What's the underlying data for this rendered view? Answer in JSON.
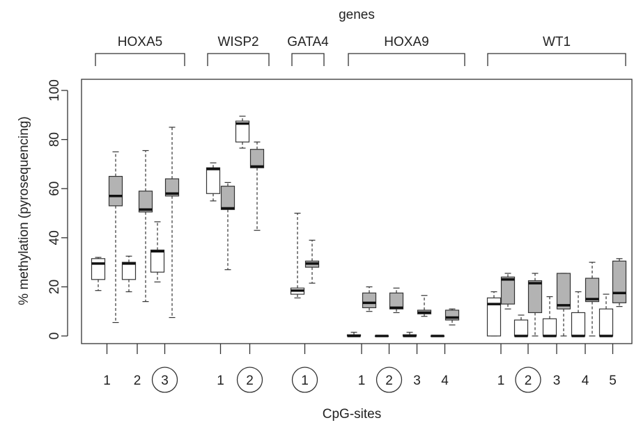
{
  "chart_data": {
    "type": "boxplot",
    "title": "genes",
    "xlabel": "CpG-sites",
    "ylabel": "% methylation (pyrosequencing)",
    "ylim": [
      0,
      100
    ],
    "yticks": [
      0,
      20,
      40,
      60,
      80,
      100
    ],
    "grid": false,
    "series_colors": {
      "white": "#ffffff",
      "gray": "#b3b3b3"
    },
    "groups": [
      {
        "gene": "HOXA5",
        "sites": [
          {
            "label": "1",
            "circled": false
          },
          {
            "label": "2",
            "circled": false
          },
          {
            "label": "3",
            "circled": true
          }
        ]
      },
      {
        "gene": "WISP2",
        "sites": [
          {
            "label": "1",
            "circled": false
          },
          {
            "label": "2",
            "circled": true
          }
        ]
      },
      {
        "gene": "GATA4",
        "sites": [
          {
            "label": "1",
            "circled": true
          }
        ]
      },
      {
        "gene": "HOXA9",
        "sites": [
          {
            "label": "1",
            "circled": false
          },
          {
            "label": "2",
            "circled": true
          },
          {
            "label": "3",
            "circled": false
          },
          {
            "label": "4",
            "circled": false
          }
        ]
      },
      {
        "gene": "WT1",
        "sites": [
          {
            "label": "1",
            "circled": false
          },
          {
            "label": "2",
            "circled": true
          },
          {
            "label": "3",
            "circled": false
          },
          {
            "label": "4",
            "circled": false
          },
          {
            "label": "5",
            "circled": false
          }
        ]
      }
    ],
    "boxes": [
      {
        "gene": "HOXA5",
        "site": "1",
        "fill": "white",
        "min": 18.5,
        "q1": 23,
        "median": 29.5,
        "q3": 31.5,
        "max": 32
      },
      {
        "gene": "HOXA5",
        "site": "1",
        "fill": "gray",
        "min": 5.5,
        "q1": 53,
        "median": 57,
        "q3": 65,
        "max": 75
      },
      {
        "gene": "HOXA5",
        "site": "2",
        "fill": "white",
        "min": 18,
        "q1": 23,
        "median": 29.5,
        "q3": 30,
        "max": 32.5
      },
      {
        "gene": "HOXA5",
        "site": "2",
        "fill": "gray",
        "min": 14,
        "q1": 50.5,
        "median": 51.5,
        "q3": 59,
        "max": 75.5
      },
      {
        "gene": "HOXA5",
        "site": "3",
        "fill": "white",
        "min": 22,
        "q1": 26,
        "median": 34.5,
        "q3": 35,
        "max": 46.5
      },
      {
        "gene": "HOXA5",
        "site": "3",
        "fill": "gray",
        "min": 7.5,
        "q1": 57,
        "median": 58,
        "q3": 64,
        "max": 85
      },
      {
        "gene": "WISP2",
        "site": "1",
        "fill": "white",
        "min": 55,
        "q1": 58,
        "median": 68,
        "q3": 68.5,
        "max": 70.5
      },
      {
        "gene": "WISP2",
        "site": "1",
        "fill": "gray",
        "min": 27,
        "q1": 51.5,
        "median": 52,
        "q3": 61,
        "max": 62.5
      },
      {
        "gene": "WISP2",
        "site": "2",
        "fill": "white",
        "min": 76.5,
        "q1": 79,
        "median": 86.5,
        "q3": 87.5,
        "max": 89.5
      },
      {
        "gene": "WISP2",
        "site": "2",
        "fill": "gray",
        "min": 43,
        "q1": 68.5,
        "median": 69,
        "q3": 76,
        "max": 79
      },
      {
        "gene": "GATA4",
        "site": "1",
        "fill": "white",
        "min": 15.5,
        "q1": 17,
        "median": 18.5,
        "q3": 19.5,
        "max": 50
      },
      {
        "gene": "GATA4",
        "site": "1",
        "fill": "gray",
        "min": 21.5,
        "q1": 28,
        "median": 29.5,
        "q3": 30.5,
        "max": 39
      },
      {
        "gene": "HOXA9",
        "site": "1",
        "fill": "white",
        "min": 0,
        "q1": 0,
        "median": 0,
        "q3": 0.5,
        "max": 1.5
      },
      {
        "gene": "HOXA9",
        "site": "1",
        "fill": "gray",
        "min": 10,
        "q1": 11.5,
        "median": 13.5,
        "q3": 17.5,
        "max": 20
      },
      {
        "gene": "HOXA9",
        "site": "2",
        "fill": "white",
        "min": 0,
        "q1": 0,
        "median": 0,
        "q3": 0,
        "max": 0
      },
      {
        "gene": "HOXA9",
        "site": "2",
        "fill": "gray",
        "min": 9.5,
        "q1": 11,
        "median": 11.5,
        "q3": 17.5,
        "max": 19.5
      },
      {
        "gene": "HOXA9",
        "site": "3",
        "fill": "white",
        "min": 0,
        "q1": 0,
        "median": 0,
        "q3": 0.5,
        "max": 1.5
      },
      {
        "gene": "HOXA9",
        "site": "3",
        "fill": "gray",
        "min": 8,
        "q1": 9,
        "median": 9.5,
        "q3": 10.5,
        "max": 16.5
      },
      {
        "gene": "HOXA9",
        "site": "4",
        "fill": "white",
        "min": 0,
        "q1": 0,
        "median": 0,
        "q3": 0,
        "max": 0
      },
      {
        "gene": "HOXA9",
        "site": "4",
        "fill": "gray",
        "min": 4.5,
        "q1": 6.5,
        "median": 7.5,
        "q3": 10.5,
        "max": 11
      },
      {
        "gene": "WT1",
        "site": "1",
        "fill": "white",
        "min": 0,
        "q1": 0,
        "median": 13,
        "q3": 15.5,
        "max": 18
      },
      {
        "gene": "WT1",
        "site": "1",
        "fill": "gray",
        "min": 11,
        "q1": 13,
        "median": 23,
        "q3": 24,
        "max": 25.5
      },
      {
        "gene": "WT1",
        "site": "2",
        "fill": "white",
        "min": 0,
        "q1": 0,
        "median": 0,
        "q3": 6.5,
        "max": 8.5
      },
      {
        "gene": "WT1",
        "site": "2",
        "fill": "gray",
        "min": 0,
        "q1": 9.5,
        "median": 21.5,
        "q3": 22.5,
        "max": 25.5
      },
      {
        "gene": "WT1",
        "site": "3",
        "fill": "white",
        "min": 0,
        "q1": 0,
        "median": 0,
        "q3": 7,
        "max": 16
      },
      {
        "gene": "WT1",
        "site": "3",
        "fill": "gray",
        "min": 0,
        "q1": 11,
        "median": 12.5,
        "q3": 25.5,
        "max": 25.5
      },
      {
        "gene": "WT1",
        "site": "4",
        "fill": "white",
        "min": 0,
        "q1": 0,
        "median": 0,
        "q3": 9.5,
        "max": 18
      },
      {
        "gene": "WT1",
        "site": "4",
        "fill": "gray",
        "min": 0,
        "q1": 14,
        "median": 15,
        "q3": 23.5,
        "max": 30
      },
      {
        "gene": "WT1",
        "site": "5",
        "fill": "white",
        "min": 0,
        "q1": 0,
        "median": 0,
        "q3": 11,
        "max": 17
      },
      {
        "gene": "WT1",
        "site": "5",
        "fill": "gray",
        "min": 12,
        "q1": 13.5,
        "median": 17.5,
        "q3": 30.5,
        "max": 31.5
      }
    ]
  }
}
